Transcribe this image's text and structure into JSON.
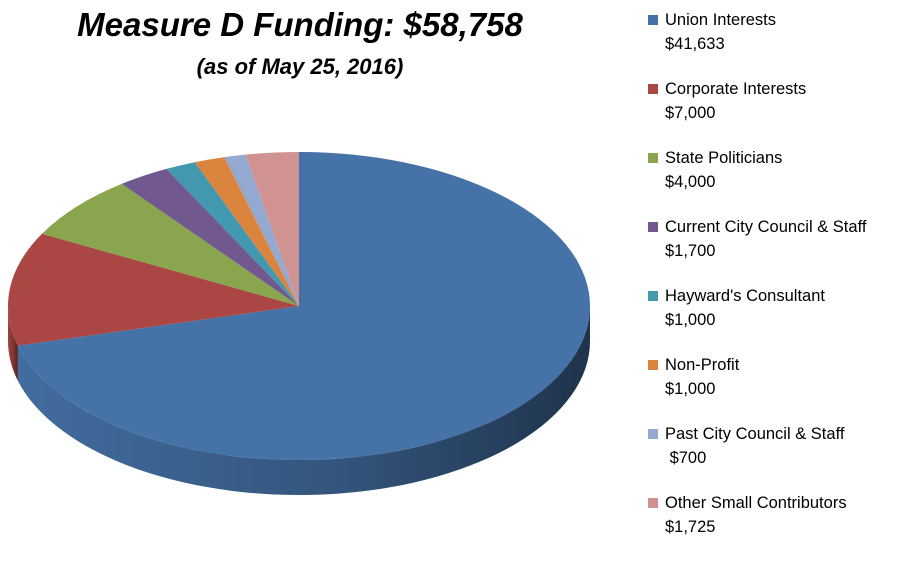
{
  "chart_data": {
    "type": "pie",
    "title": "Measure D Funding: $58,758",
    "subtitle": "(as of May 25, 2016)",
    "legend_position": "right",
    "slices": [
      {
        "name": "Union Interests",
        "value": 41633,
        "label": "$41,633",
        "color": "#4572A7"
      },
      {
        "name": "Corporate Interests",
        "value": 7000,
        "label": "$7,000",
        "color": "#AA4643"
      },
      {
        "name": "State Politicians",
        "value": 4000,
        "label": "$4,000",
        "color": "#89A54E"
      },
      {
        "name": "Current City Council & Staff",
        "value": 1700,
        "label": "$1,700",
        "color": "#71588F"
      },
      {
        "name": "Hayward's Consultant",
        "value": 1000,
        "label": "$1,000",
        "color": "#4198AF"
      },
      {
        "name": "Non-Profit",
        "value": 1000,
        "label": "$1,000",
        "color": "#DB843D"
      },
      {
        "name": "Past City Council & Staff",
        "value": 700,
        "label": " $700",
        "color": "#93A9CF"
      },
      {
        "name": "Other Small Contributors",
        "value": 1725,
        "label": "$1,725",
        "color": "#D19392"
      }
    ]
  }
}
